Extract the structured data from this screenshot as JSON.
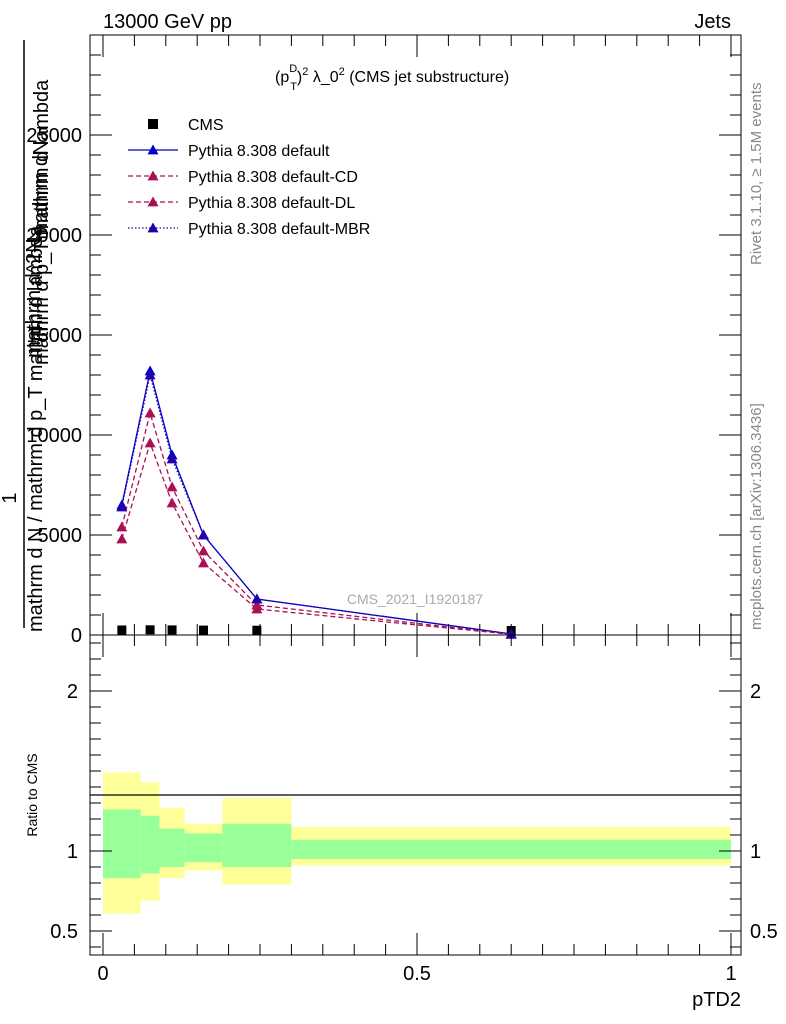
{
  "header": {
    "left": "13000 GeV pp",
    "right": "Jets"
  },
  "side_labels": {
    "rivet": "Rivet 3.1.10, ≥ 1.5M events",
    "mcplots": "mcplots.cern.ch [arXiv:1306.3436]"
  },
  "chart_data": [
    {
      "type": "line",
      "panel": "main",
      "title_parts": {
        "p": "(p",
        "sup_d": "D",
        "sub_t": "T",
        "close": ")",
        "sup_2": "2",
        "mid": " λ_0",
        "sup_2b": "2",
        "rest": " (CMS jet substructure)"
      },
      "watermark": "CMS_2021_I1920187",
      "ylabel_parts": {
        "one": "1",
        "numerator": "mathrm dN",
        "denominator": "mathrm d p_T mathrm d lambda",
        "left_numerator": "mathrm d^2N",
        "left_denominator": "mathrm d N / mathrm d p_T mathrm d lambda",
        "sub_t": "T"
      },
      "ylim": [
        0,
        30000
      ],
      "yticks": [
        0,
        5000,
        10000,
        15000,
        20000,
        25000
      ],
      "ytick_labels": [
        "0",
        "5000",
        "10000",
        "15000",
        "20000",
        "25000"
      ],
      "xlim": [
        0,
        1
      ],
      "x": [
        0.03,
        0.075,
        0.11,
        0.16,
        0.245,
        0.65
      ],
      "series": [
        {
          "name": "CMS",
          "color": "#000000",
          "marker": "square",
          "line": "none",
          "values": [
            25,
            35,
            30,
            20,
            15,
            0
          ]
        },
        {
          "name": "Pythia 8.308 default",
          "color": "#0000cc",
          "marker": "triangle",
          "line": "solid",
          "values": [
            6500,
            13200,
            9000,
            5000,
            1800,
            50
          ]
        },
        {
          "name": "Pythia 8.308 default-CD",
          "color": "#aa1155",
          "marker": "triangle",
          "line": "dashed",
          "values": [
            5400,
            11100,
            7400,
            4200,
            1500,
            40
          ]
        },
        {
          "name": "Pythia 8.308 default-DL",
          "color": "#aa1155",
          "marker": "triangle",
          "line": "dashed",
          "values": [
            4800,
            9600,
            6600,
            3600,
            1300,
            35
          ]
        },
        {
          "name": "Pythia 8.308 default-MBR",
          "color": "#2200aa",
          "marker": "triangle",
          "line": "dotted",
          "values": [
            6400,
            13000,
            8800,
            5000,
            1800,
            50
          ]
        }
      ]
    },
    {
      "type": "area",
      "panel": "ratio",
      "ylabel": "Ratio to CMS",
      "xlabel": "pTD2",
      "ylim": [
        0.35,
        2.35
      ],
      "yticks": [
        0.5,
        1,
        2
      ],
      "ytick_labels": [
        "0.5",
        "1",
        "2"
      ],
      "xticks": [
        0,
        0.5,
        1
      ],
      "xtick_labels": [
        "0",
        "0.5",
        "1"
      ],
      "bins": [
        {
          "lo": 0.0,
          "hi": 0.06,
          "green": [
            0.83,
            1.26
          ],
          "yellow": [
            0.61,
            1.49
          ]
        },
        {
          "lo": 0.06,
          "hi": 0.09,
          "green": [
            0.86,
            1.22
          ],
          "yellow": [
            0.69,
            1.43
          ]
        },
        {
          "lo": 0.09,
          "hi": 0.13,
          "green": [
            0.9,
            1.14
          ],
          "yellow": [
            0.83,
            1.27
          ]
        },
        {
          "lo": 0.13,
          "hi": 0.19,
          "green": [
            0.93,
            1.11
          ],
          "yellow": [
            0.88,
            1.17
          ]
        },
        {
          "lo": 0.19,
          "hi": 0.3,
          "green": [
            0.9,
            1.17
          ],
          "yellow": [
            0.79,
            1.33
          ]
        },
        {
          "lo": 0.3,
          "hi": 1.0,
          "green": [
            0.95,
            1.07
          ],
          "yellow": [
            0.91,
            1.15
          ]
        }
      ],
      "band_colors": {
        "green": "#99ff99",
        "yellow": "#ffff99"
      }
    }
  ]
}
